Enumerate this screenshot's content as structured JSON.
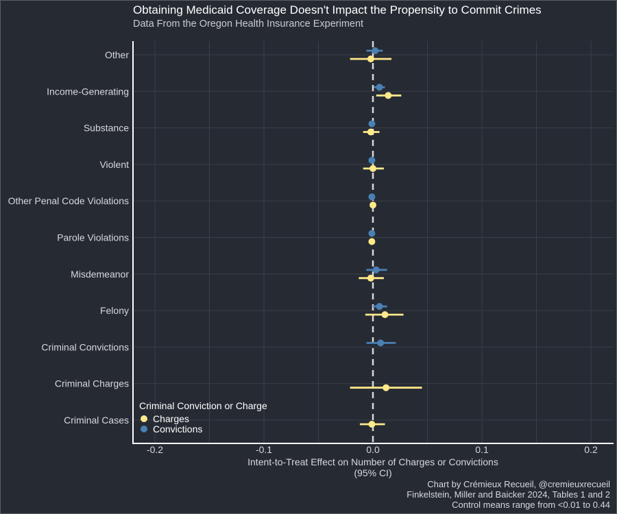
{
  "colors": {
    "background": "#262a33",
    "charges": "#ffe98a",
    "convictions": "#4a80b4",
    "grid": "#3a3f49",
    "zero_line": "#d9d9d9"
  },
  "chart_data": {
    "type": "scatter",
    "subtype": "dot-and-whisker",
    "title": "Obtaining Medicaid Coverage Doesn't Impact the Propensity to Commit Crimes",
    "subtitle": "Data From the Oregon Health Insurance Experiment",
    "xlabel": "Intent-to-Treat Effect on Number of Charges or Convictions",
    "xlabel_line2": "(95% CI)",
    "xlim": [
      -0.22,
      0.22
    ],
    "xticks": [
      -0.2,
      -0.1,
      0.0,
      0.1,
      0.2
    ],
    "xtick_labels": [
      "-0.2",
      "-0.1",
      "0.0",
      "0.1",
      "0.2"
    ],
    "zero_reference_line": "dashed",
    "grid": true,
    "legend_position": "bottom-left",
    "legend_title": "Criminal Conviction or Charge",
    "categories": [
      "Other",
      "Income-Generating",
      "Substance",
      "Violent",
      "Other Penal Code Violations",
      "Parole Violations",
      "Misdemeanor",
      "Felony",
      "Criminal Convictions",
      "Criminal Charges",
      "Criminal Cases"
    ],
    "series": [
      {
        "name": "Charges",
        "color": "#ffe98a",
        "points": [
          {
            "category": "Other",
            "estimate": -0.002,
            "ci": [
              -0.021,
              0.017
            ]
          },
          {
            "category": "Income-Generating",
            "estimate": 0.014,
            "ci": [
              0.003,
              0.026
            ]
          },
          {
            "category": "Substance",
            "estimate": -0.002,
            "ci": [
              -0.009,
              0.006
            ]
          },
          {
            "category": "Violent",
            "estimate": 0.0,
            "ci": [
              -0.009,
              0.01
            ]
          },
          {
            "category": "Other Penal Code Violations",
            "estimate": 0.0,
            "ci": [
              -0.001,
              0.001
            ]
          },
          {
            "category": "Parole Violations",
            "estimate": -0.001,
            "ci": [
              -0.002,
              0.001
            ]
          },
          {
            "category": "Misdemeanor",
            "estimate": -0.002,
            "ci": [
              -0.013,
              0.01
            ]
          },
          {
            "category": "Felony",
            "estimate": 0.011,
            "ci": [
              -0.007,
              0.028
            ]
          },
          {
            "category": "Criminal Charges",
            "estimate": 0.012,
            "ci": [
              -0.021,
              0.045
            ]
          },
          {
            "category": "Criminal Cases",
            "estimate": -0.001,
            "ci": [
              -0.012,
              0.011
            ]
          }
        ]
      },
      {
        "name": "Convictions",
        "color": "#4a80b4",
        "points": [
          {
            "category": "Other",
            "estimate": 0.002,
            "ci": [
              -0.006,
              0.009
            ]
          },
          {
            "category": "Income-Generating",
            "estimate": 0.006,
            "ci": [
              0.001,
              0.011
            ]
          },
          {
            "category": "Substance",
            "estimate": -0.001,
            "ci": [
              -0.004,
              0.002
            ]
          },
          {
            "category": "Violent",
            "estimate": -0.001,
            "ci": [
              -0.004,
              0.002
            ]
          },
          {
            "category": "Other Penal Code Violations",
            "estimate": -0.001,
            "ci": [
              -0.002,
              0.0
            ]
          },
          {
            "category": "Parole Violations",
            "estimate": -0.001,
            "ci": [
              -0.002,
              0.0
            ]
          },
          {
            "category": "Misdemeanor",
            "estimate": 0.003,
            "ci": [
              -0.006,
              0.013
            ]
          },
          {
            "category": "Felony",
            "estimate": 0.006,
            "ci": [
              0.0,
              0.013
            ]
          },
          {
            "category": "Criminal Convictions",
            "estimate": 0.007,
            "ci": [
              -0.006,
              0.021
            ]
          }
        ]
      }
    ],
    "caption": [
      "Chart by Crémieux Recueil, @cremieuxrecueil",
      "Finkelstein, Miller and Baicker 2024, Tables 1 and 2",
      "Control means range from <0.01 to 0.44"
    ]
  }
}
